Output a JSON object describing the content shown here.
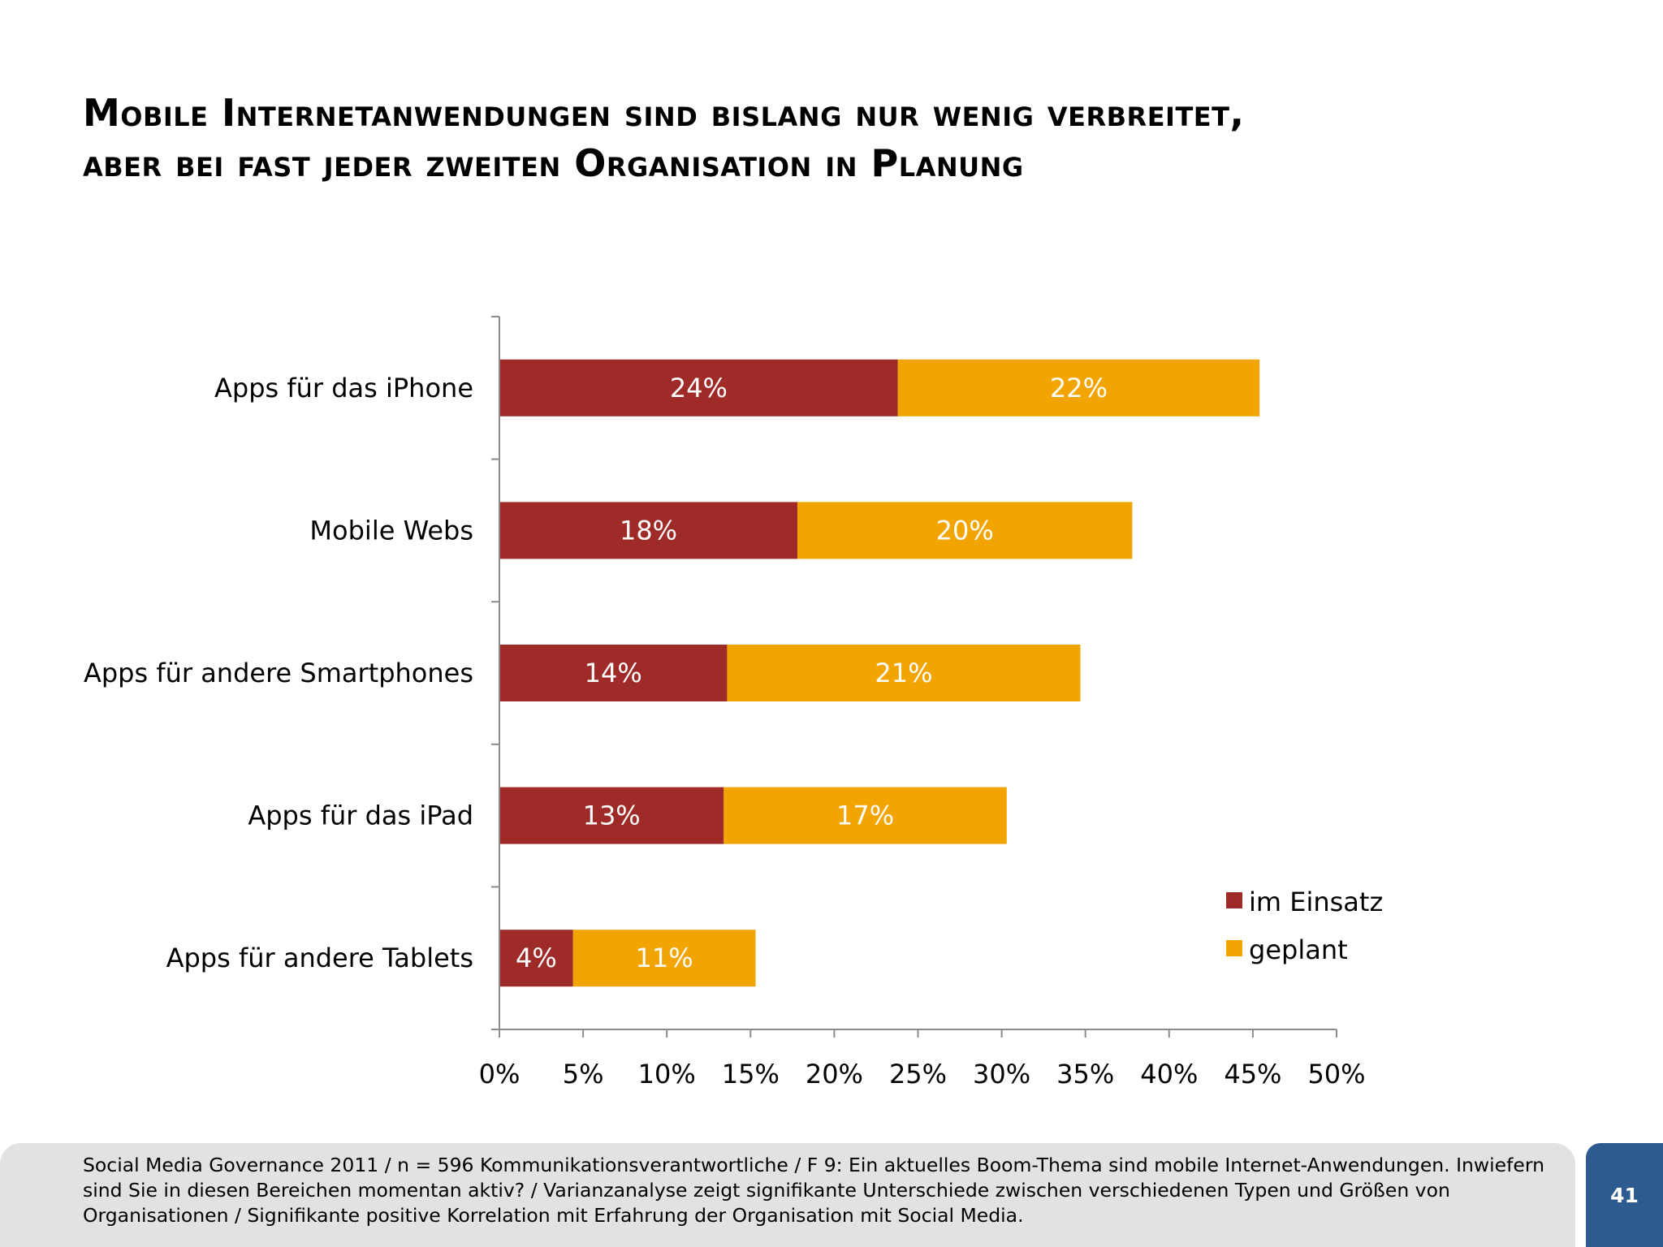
{
  "slide": {
    "title_lines": [
      "Mobile Internetanwendungen sind bislang nur wenig verbreitet,",
      "aber bei fast jeder zweiten Organisation in Planung"
    ],
    "footnote": "Social Media Governance 2011 / n = 596 Kommunikationsverantwortliche / F 9: Ein aktuelles Boom-Thema sind mobile Internet-Anwendungen. Inwiefern sind Sie in diesen Bereichen momentan aktiv? / Varianzanalyse zeigt signifikante Unterschiede zwischen verschiedenen Typen und Größen von Organisationen / Signifikante positive Korrelation mit Erfahrung der Organisation mit Social Media.",
    "page_number": "41"
  },
  "chart_data": {
    "type": "bar",
    "orientation": "horizontal",
    "stacked": true,
    "categories": [
      "Apps für das iPhone",
      "Mobile Webs",
      "Apps für andere Smartphones",
      "Apps für das iPad",
      "Apps für andere Tablets"
    ],
    "series": [
      {
        "name": "im Einsatz",
        "color": "#9e2b27",
        "values": [
          24,
          18,
          14,
          13,
          4
        ],
        "labels": [
          "24%",
          "18%",
          "14%",
          "13%",
          "4%"
        ]
      },
      {
        "name": "geplant",
        "color": "#f2a500",
        "values": [
          22,
          20,
          21,
          17,
          11
        ],
        "labels": [
          "22%",
          "20%",
          "21%",
          "17%",
          "11%"
        ]
      }
    ],
    "bar_extents": [
      [
        23.8,
        21.6
      ],
      [
        17.8,
        20.0
      ],
      [
        13.6,
        21.1
      ],
      [
        13.4,
        16.9
      ],
      [
        4.4,
        10.9
      ]
    ],
    "xlim": [
      0,
      50
    ],
    "xticks": [
      0,
      5,
      10,
      15,
      20,
      25,
      30,
      35,
      40,
      45,
      50
    ],
    "xtick_labels": [
      "0%",
      "5%",
      "10%",
      "15%",
      "20%",
      "25%",
      "30%",
      "35%",
      "40%",
      "45%",
      "50%"
    ],
    "legend_position": "bottom-right",
    "grid": false
  }
}
